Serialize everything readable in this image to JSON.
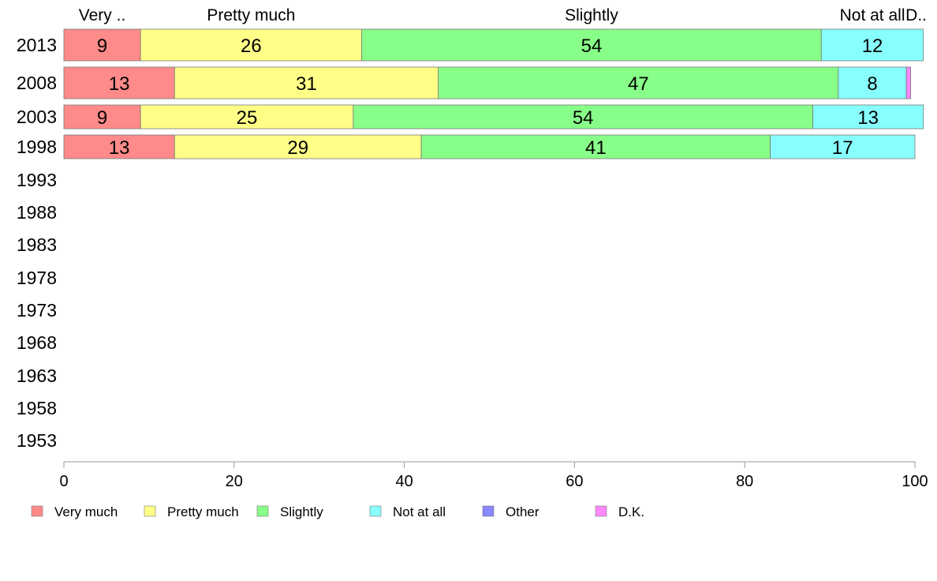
{
  "chart_data": {
    "type": "bar",
    "orientation": "horizontal",
    "stacked": true,
    "categories": [
      "2013",
      "2008",
      "2003",
      "1998",
      "1993",
      "1988",
      "1983",
      "1978",
      "1973",
      "1968",
      "1963",
      "1958",
      "1953"
    ],
    "series": [
      {
        "name": "Very much",
        "color": "#ff8a8a",
        "values": [
          9,
          13,
          9,
          13,
          null,
          null,
          null,
          null,
          null,
          null,
          null,
          null,
          null
        ],
        "labels": [
          "9",
          "13",
          "9",
          "13",
          "",
          "",
          "",
          "",
          "",
          "",
          "",
          "",
          ""
        ]
      },
      {
        "name": "Pretty much",
        "color": "#ffff88",
        "values": [
          26,
          31,
          25,
          29,
          null,
          null,
          null,
          null,
          null,
          null,
          null,
          null,
          null
        ],
        "labels": [
          "26",
          "31",
          "25",
          "29",
          "",
          "",
          "",
          "",
          "",
          "",
          "",
          "",
          ""
        ]
      },
      {
        "name": "Slightly",
        "color": "#88ff88",
        "values": [
          54,
          47,
          54,
          41,
          null,
          null,
          null,
          null,
          null,
          null,
          null,
          null,
          null
        ],
        "labels": [
          "54",
          "47",
          "54",
          "41",
          "",
          "",
          "",
          "",
          "",
          "",
          "",
          "",
          ""
        ]
      },
      {
        "name": "Not at all",
        "color": "#88ffff",
        "values": [
          12,
          8,
          13,
          17,
          null,
          null,
          null,
          null,
          null,
          null,
          null,
          null,
          null
        ],
        "labels": [
          "12",
          "8",
          "13",
          "17",
          "",
          "",
          "",
          "",
          "",
          "",
          "",
          "",
          ""
        ]
      },
      {
        "name": "Other",
        "color": "#8888ff",
        "values": [
          0,
          0,
          0,
          0,
          null,
          null,
          null,
          null,
          null,
          null,
          null,
          null,
          null
        ],
        "labels": [
          "",
          "",
          "",
          "",
          "",
          "",
          "",
          "",
          "",
          "",
          "",
          "",
          ""
        ]
      },
      {
        "name": "D.K.",
        "color": "#ff88ff",
        "values": [
          0,
          0.5,
          0,
          0,
          null,
          null,
          null,
          null,
          null,
          null,
          null,
          null,
          null
        ],
        "labels": [
          "",
          "",
          "",
          "",
          "",
          "",
          "",
          "",
          "",
          "",
          "",
          "",
          ""
        ]
      }
    ],
    "top_labels": [
      "Very ..",
      "Pretty much",
      "Slightly",
      "Not at all",
      "D.."
    ],
    "xlim": [
      0,
      100
    ],
    "xticks": [
      0,
      20,
      40,
      60,
      80,
      100
    ],
    "xtick_labels": [
      "0",
      "20",
      "40",
      "60",
      "80",
      "100"
    ],
    "title": "",
    "xlabel": "",
    "ylabel": "",
    "grid": false,
    "legend_position": "bottom",
    "legend": [
      "Very much",
      "Pretty much",
      "Slightly",
      "Not at all",
      "Other",
      "D.K."
    ]
  }
}
